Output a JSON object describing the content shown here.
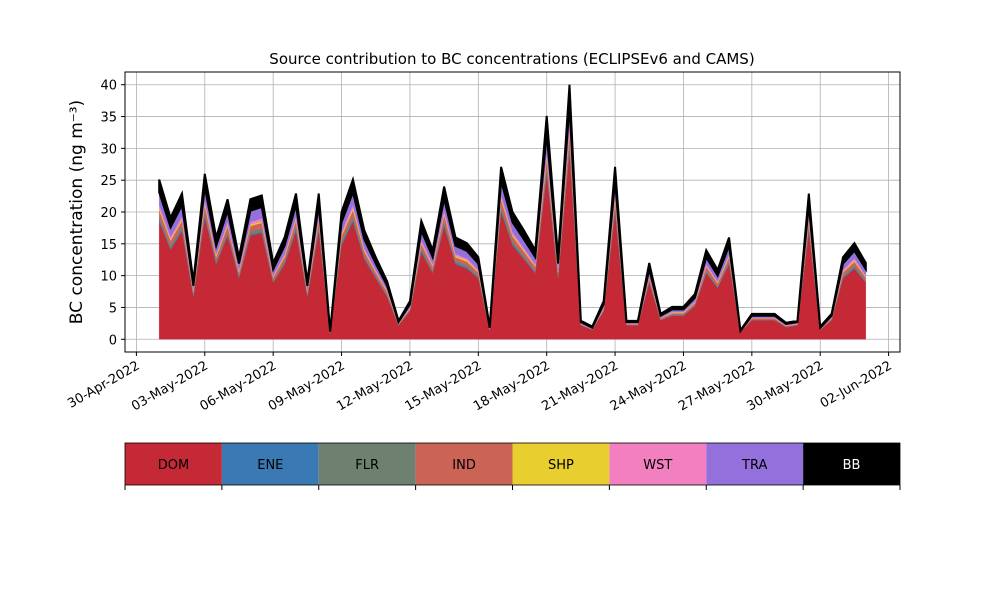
{
  "chart_data": {
    "type": "stacked_area",
    "title": "Source contribution to BC concentrations (ECLIPSEv6 and CAMS)",
    "y_label": "BC concentration (ng m⁻³)",
    "legend_position": "bottom",
    "grid": true,
    "x": [
      "2022-05-01T00:00",
      "2022-05-01T12:00",
      "2022-05-02T00:00",
      "2022-05-02T12:00",
      "2022-05-03T00:00",
      "2022-05-03T12:00",
      "2022-05-04T00:00",
      "2022-05-04T12:00",
      "2022-05-05T00:00",
      "2022-05-05T12:00",
      "2022-05-06T00:00",
      "2022-05-06T12:00",
      "2022-05-07T00:00",
      "2022-05-07T12:00",
      "2022-05-08T00:00",
      "2022-05-08T12:00",
      "2022-05-09T00:00",
      "2022-05-09T12:00",
      "2022-05-10T00:00",
      "2022-05-10T12:00",
      "2022-05-11T00:00",
      "2022-05-11T12:00",
      "2022-05-12T00:00",
      "2022-05-12T12:00",
      "2022-05-13T00:00",
      "2022-05-13T12:00",
      "2022-05-14T00:00",
      "2022-05-14T12:00",
      "2022-05-15T00:00",
      "2022-05-15T12:00",
      "2022-05-16T00:00",
      "2022-05-16T12:00",
      "2022-05-17T00:00",
      "2022-05-17T12:00",
      "2022-05-18T00:00",
      "2022-05-18T12:00",
      "2022-05-19T00:00",
      "2022-05-19T12:00",
      "2022-05-20T00:00",
      "2022-05-20T12:00",
      "2022-05-21T00:00",
      "2022-05-21T12:00",
      "2022-05-22T00:00",
      "2022-05-22T12:00",
      "2022-05-23T00:00",
      "2022-05-23T12:00",
      "2022-05-24T00:00",
      "2022-05-24T12:00",
      "2022-05-25T00:00",
      "2022-05-25T12:00",
      "2022-05-26T00:00",
      "2022-05-26T12:00",
      "2022-05-27T00:00",
      "2022-05-27T12:00",
      "2022-05-28T00:00",
      "2022-05-28T12:00",
      "2022-05-29T00:00",
      "2022-05-29T12:00",
      "2022-05-30T00:00",
      "2022-05-30T12:00",
      "2022-05-31T00:00",
      "2022-05-31T12:00",
      "2022-06-01T00:00"
    ],
    "xlim": [
      "2022-04-29T12:00",
      "2022-06-02T12:00"
    ],
    "xticks": [
      {
        "value": "2022-04-30T00:00",
        "label": "30-Apr-2022"
      },
      {
        "value": "2022-05-03T00:00",
        "label": "03-May-2022"
      },
      {
        "value": "2022-05-06T00:00",
        "label": "06-May-2022"
      },
      {
        "value": "2022-05-09T00:00",
        "label": "09-May-2022"
      },
      {
        "value": "2022-05-12T00:00",
        "label": "12-May-2022"
      },
      {
        "value": "2022-05-15T00:00",
        "label": "15-May-2022"
      },
      {
        "value": "2022-05-18T00:00",
        "label": "18-May-2022"
      },
      {
        "value": "2022-05-21T00:00",
        "label": "21-May-2022"
      },
      {
        "value": "2022-05-24T00:00",
        "label": "24-May-2022"
      },
      {
        "value": "2022-05-27T00:00",
        "label": "27-May-2022"
      },
      {
        "value": "2022-05-30T00:00",
        "label": "30-May-2022"
      },
      {
        "value": "2022-06-02T00:00",
        "label": "02-Jun-2022"
      }
    ],
    "ylim": [
      -2,
      42
    ],
    "yticks": [
      0,
      5,
      10,
      15,
      20,
      25,
      30,
      35,
      40
    ],
    "series": [
      {
        "name": "DOM",
        "color": "#c62936",
        "values": [
          18.5,
          14.1,
          17.0,
          6.7,
          19.2,
          11.8,
          16.3,
          9.6,
          16.3,
          16.7,
          8.9,
          11.8,
          17.0,
          6.7,
          17.0,
          1.0,
          14.8,
          18.5,
          12.6,
          9.6,
          6.7,
          2.2,
          4.4,
          13.7,
          10.4,
          17.8,
          11.8,
          11.1,
          9.6,
          1.5,
          20.0,
          14.8,
          12.6,
          10.4,
          25.9,
          9.6,
          29.6,
          2.2,
          1.5,
          4.4,
          20.0,
          2.2,
          2.2,
          8.9,
          3.0,
          3.7,
          3.7,
          5.2,
          10.4,
          8.1,
          11.8,
          1.1,
          3.0,
          3.0,
          3.0,
          1.9,
          2.2,
          17.0,
          1.5,
          3.0,
          9.6,
          11.1,
          8.9
        ]
      },
      {
        "name": "ENE",
        "color": "#3a79b3",
        "values": [
          0.3,
          0.2,
          0.2,
          0.1,
          0.3,
          0.2,
          0.2,
          0.1,
          0.2,
          0.2,
          0.1,
          0.2,
          0.2,
          0.1,
          0.2,
          0,
          0.2,
          0.3,
          0.2,
          0.1,
          0.1,
          0,
          0.1,
          0.2,
          0.1,
          0.2,
          0.2,
          0.2,
          0.1,
          0,
          0.3,
          0.2,
          0.2,
          0.1,
          0.4,
          0.1,
          0.4,
          0,
          0,
          0.1,
          0.3,
          0,
          0,
          0.1,
          0,
          0.1,
          0.1,
          0.1,
          0.1,
          0.1,
          0.2,
          0,
          0,
          0,
          0,
          0,
          0,
          0.2,
          0,
          0,
          0.1,
          0.2,
          0.1
        ]
      },
      {
        "name": "FLR",
        "color": "#6e8070",
        "values": [
          0.5,
          0.4,
          0.5,
          0.2,
          0.5,
          0.3,
          0.4,
          0.3,
          0.4,
          0.5,
          0.2,
          0.3,
          0.5,
          0.2,
          0.5,
          0,
          0.4,
          0.5,
          0.3,
          0.3,
          0.2,
          0.1,
          0.1,
          0.4,
          0.3,
          0.5,
          0.3,
          0.3,
          0.3,
          0,
          0.5,
          0.4,
          0.3,
          0.3,
          0.7,
          0.3,
          0.8,
          0.1,
          0,
          0.1,
          0.5,
          0.1,
          0.1,
          0.2,
          0.1,
          0.1,
          0.1,
          0.1,
          0.3,
          0.2,
          0.3,
          0,
          0.1,
          0.1,
          0.1,
          0.1,
          0.1,
          0.5,
          0,
          0.1,
          0.3,
          0.3,
          0.2
        ]
      },
      {
        "name": "IND",
        "color": "#cb6457",
        "values": [
          1,
          0.8,
          0.9,
          0.4,
          1,
          0.6,
          0.9,
          0.5,
          0.9,
          0.9,
          0.5,
          0.6,
          0.9,
          0.4,
          0.9,
          0.1,
          0.8,
          1,
          0.7,
          0.5,
          0.4,
          0.1,
          0.2,
          0.7,
          0.6,
          1,
          0.6,
          0.6,
          0.5,
          0.1,
          1.1,
          0.8,
          0.7,
          0.6,
          1.4,
          0.5,
          1.6,
          0.1,
          0.1,
          0.2,
          1.1,
          0.1,
          0.1,
          0.5,
          0.2,
          0.2,
          0.2,
          0.3,
          0.6,
          0.4,
          0.6,
          0.1,
          0.2,
          0.2,
          0.2,
          0.1,
          0.1,
          0.9,
          0.1,
          0.2,
          0.5,
          0.6,
          0.5
        ]
      },
      {
        "name": "SHP",
        "color": "#e8cf2f",
        "values": [
          0.3,
          0.2,
          0.2,
          0.1,
          0.3,
          0.2,
          0.2,
          0.1,
          0.2,
          0.2,
          0.1,
          0.2,
          0.2,
          0.1,
          0.2,
          0,
          0.2,
          0.3,
          0.2,
          0.1,
          0.1,
          0,
          0.1,
          0.2,
          0.1,
          0.2,
          0.2,
          0.2,
          0.1,
          0,
          0.3,
          0.2,
          0.2,
          0.1,
          0.4,
          0.1,
          0.4,
          0,
          0,
          0.1,
          0.3,
          0,
          0,
          0.1,
          0,
          0.1,
          0.1,
          0.1,
          0.1,
          0.1,
          0.2,
          0,
          0,
          0,
          0,
          0,
          0,
          0.2,
          0,
          0,
          0.1,
          0.2,
          0.1
        ]
      },
      {
        "name": "WST",
        "color": "#f280c0",
        "values": [
          0.5,
          0.4,
          0.5,
          0.2,
          0.5,
          0.3,
          0.4,
          0.3,
          0.4,
          0.5,
          0.2,
          0.3,
          0.5,
          0.2,
          0.5,
          0,
          0.4,
          0.5,
          0.3,
          0.3,
          0.2,
          0.1,
          0.1,
          0.4,
          0.3,
          0.5,
          0.3,
          0.3,
          0.3,
          0,
          0.5,
          0.4,
          0.3,
          0.3,
          0.7,
          0.3,
          0.8,
          0.1,
          0,
          0.1,
          0.5,
          0.1,
          0.1,
          0.2,
          0.1,
          0.1,
          0.1,
          0.1,
          0.3,
          0.2,
          0.3,
          0,
          0.1,
          0.1,
          0.1,
          0.1,
          0.1,
          0.5,
          0,
          0.1,
          0.3,
          0.3,
          0.2
        ]
      },
      {
        "name": "TRA",
        "color": "#9370db",
        "values": [
          2,
          1.5,
          1.8,
          0.7,
          2.1,
          1.3,
          1.8,
          1,
          1.8,
          1.8,
          1,
          1.3,
          1.8,
          0.7,
          1.8,
          0.1,
          1.6,
          2,
          1.4,
          1,
          0.7,
          0.2,
          0.5,
          1.5,
          1.1,
          1.9,
          1.3,
          1.2,
          1,
          0.2,
          2.2,
          1.6,
          1.4,
          1.1,
          2.8,
          1,
          3.2,
          0.2,
          0.2,
          0.5,
          2.2,
          0.2,
          0.2,
          1,
          0.3,
          0.4,
          0.4,
          0.6,
          1.1,
          0.9,
          1.3,
          0.1,
          0.3,
          0.3,
          0.3,
          0.2,
          0.2,
          1.8,
          0.2,
          0.3,
          1,
          1.2,
          1
        ]
      },
      {
        "name": "BB",
        "color": "#000000",
        "values": [
          2,
          1.5,
          1.8,
          0.7,
          2.1,
          1.3,
          1.8,
          1,
          1.8,
          1.8,
          1,
          1.3,
          1.8,
          0.7,
          1.8,
          0.1,
          1.6,
          2,
          1.4,
          1,
          0.7,
          0.2,
          0.5,
          1.5,
          1.1,
          1.9,
          1.3,
          1.2,
          1,
          0.2,
          2.2,
          1.6,
          1.4,
          1.1,
          2.8,
          1,
          3.2,
          0.2,
          0.2,
          0.5,
          2.2,
          0.2,
          0.2,
          1,
          0.3,
          0.4,
          0.4,
          0.6,
          1.1,
          0.9,
          1.3,
          0.1,
          0.3,
          0.3,
          0.3,
          0.2,
          0.2,
          1.8,
          0.2,
          0.3,
          1,
          1.2,
          1
        ]
      }
    ]
  }
}
